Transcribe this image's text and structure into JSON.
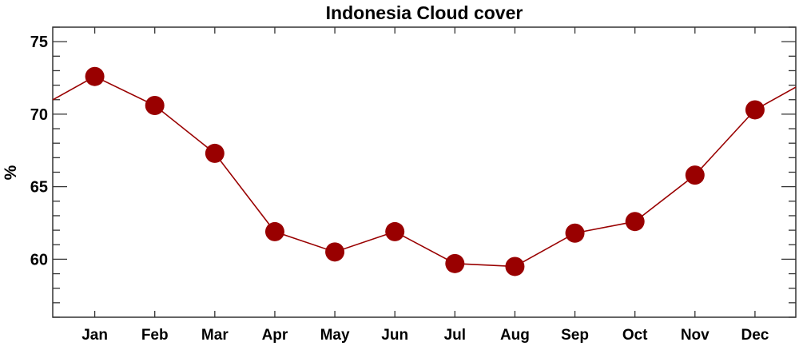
{
  "chart_data": {
    "type": "line",
    "title": "Indonesia Cloud cover",
    "xlabel": "",
    "ylabel": "%",
    "categories": [
      "Jan",
      "Feb",
      "Mar",
      "Apr",
      "May",
      "Jun",
      "Jul",
      "Aug",
      "Sep",
      "Oct",
      "Nov",
      "Dec"
    ],
    "series": [
      {
        "values": [
          72.6,
          70.6,
          67.3,
          61.9,
          60.5,
          61.9,
          59.7,
          59.5,
          61.8,
          62.6,
          65.8,
          70.3
        ]
      }
    ],
    "ylim": [
      56,
      76
    ],
    "yticks": [
      60,
      65,
      70,
      75
    ],
    "yminor_step": 1,
    "grid": false,
    "line_wraps_around_year": true,
    "color": "#990000"
  }
}
